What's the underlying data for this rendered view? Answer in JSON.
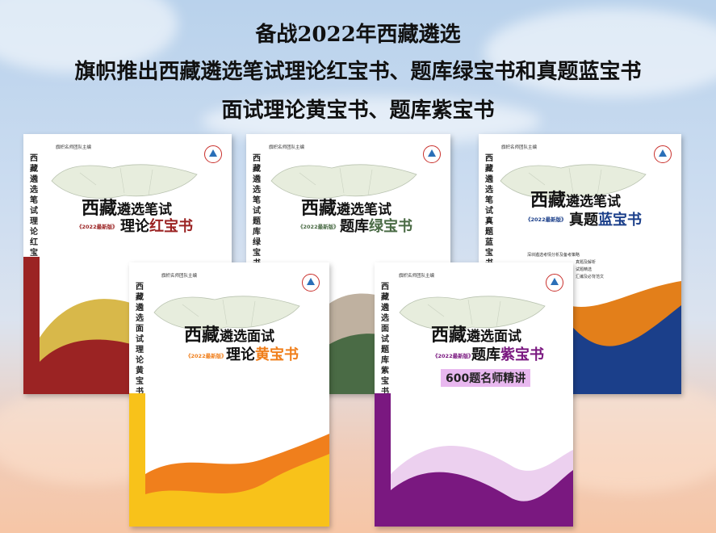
{
  "headline": {
    "line1": "备战2022年西藏遴选",
    "line2": "旗帜推出西藏遴选笔试理论红宝书、题库绿宝书和真题蓝宝书",
    "line3": "面试理论黄宝书、题库紫宝书"
  },
  "books": [
    {
      "id": "red",
      "spine": "西藏遴选笔试理论红宝书",
      "byline": "旗帜名师团队主编",
      "title_big": "西藏",
      "title_small": "遴选笔试",
      "edition": "《2022最新版》",
      "title2_prefix": "理论",
      "title2_color": "红宝书",
      "accent": "#9b2323"
    },
    {
      "id": "green",
      "spine": "西藏遴选笔试题库绿宝书",
      "byline": "旗帜名师团队主编",
      "title_big": "西藏",
      "title_small": "遴选笔试",
      "edition": "《2022最新版》",
      "title2_prefix": "题库",
      "title2_color": "绿宝书",
      "accent": "#4a6b45"
    },
    {
      "id": "blue",
      "spine": "西藏遴选笔试真题蓝宝书",
      "byline": "旗帜名师团队主编",
      "title_big": "西藏",
      "title_small": "遴选笔试",
      "edition": "《2022最新版》",
      "title2_prefix": "真题",
      "title2_color": "蓝宝书",
      "accent": "#1b3f8a",
      "bullets": [
        "深圳遴选考情分析及备考策略",
        "",
        "真题及解析",
        "试题精选",
        "汇编及必背范文"
      ]
    },
    {
      "id": "yellow",
      "spine": "西藏遴选面试理论黄宝书",
      "byline": "旗帜名师团队主编",
      "title_big": "西藏",
      "title_small": "遴选面试",
      "edition": "《2022最新版》",
      "title2_prefix": "理论",
      "title2_color": "黄宝书",
      "accent": "#f07f1c"
    },
    {
      "id": "purple",
      "spine": "西藏遴选面试题库紫宝书",
      "byline": "旗帜名师团队主编",
      "title_big": "西藏",
      "title_small": "遴选面试",
      "edition": "《2022最新版》",
      "title2_prefix": "题库",
      "title2_color": "紫宝书",
      "accent": "#7a1880",
      "badge": "600题名师精讲"
    }
  ]
}
